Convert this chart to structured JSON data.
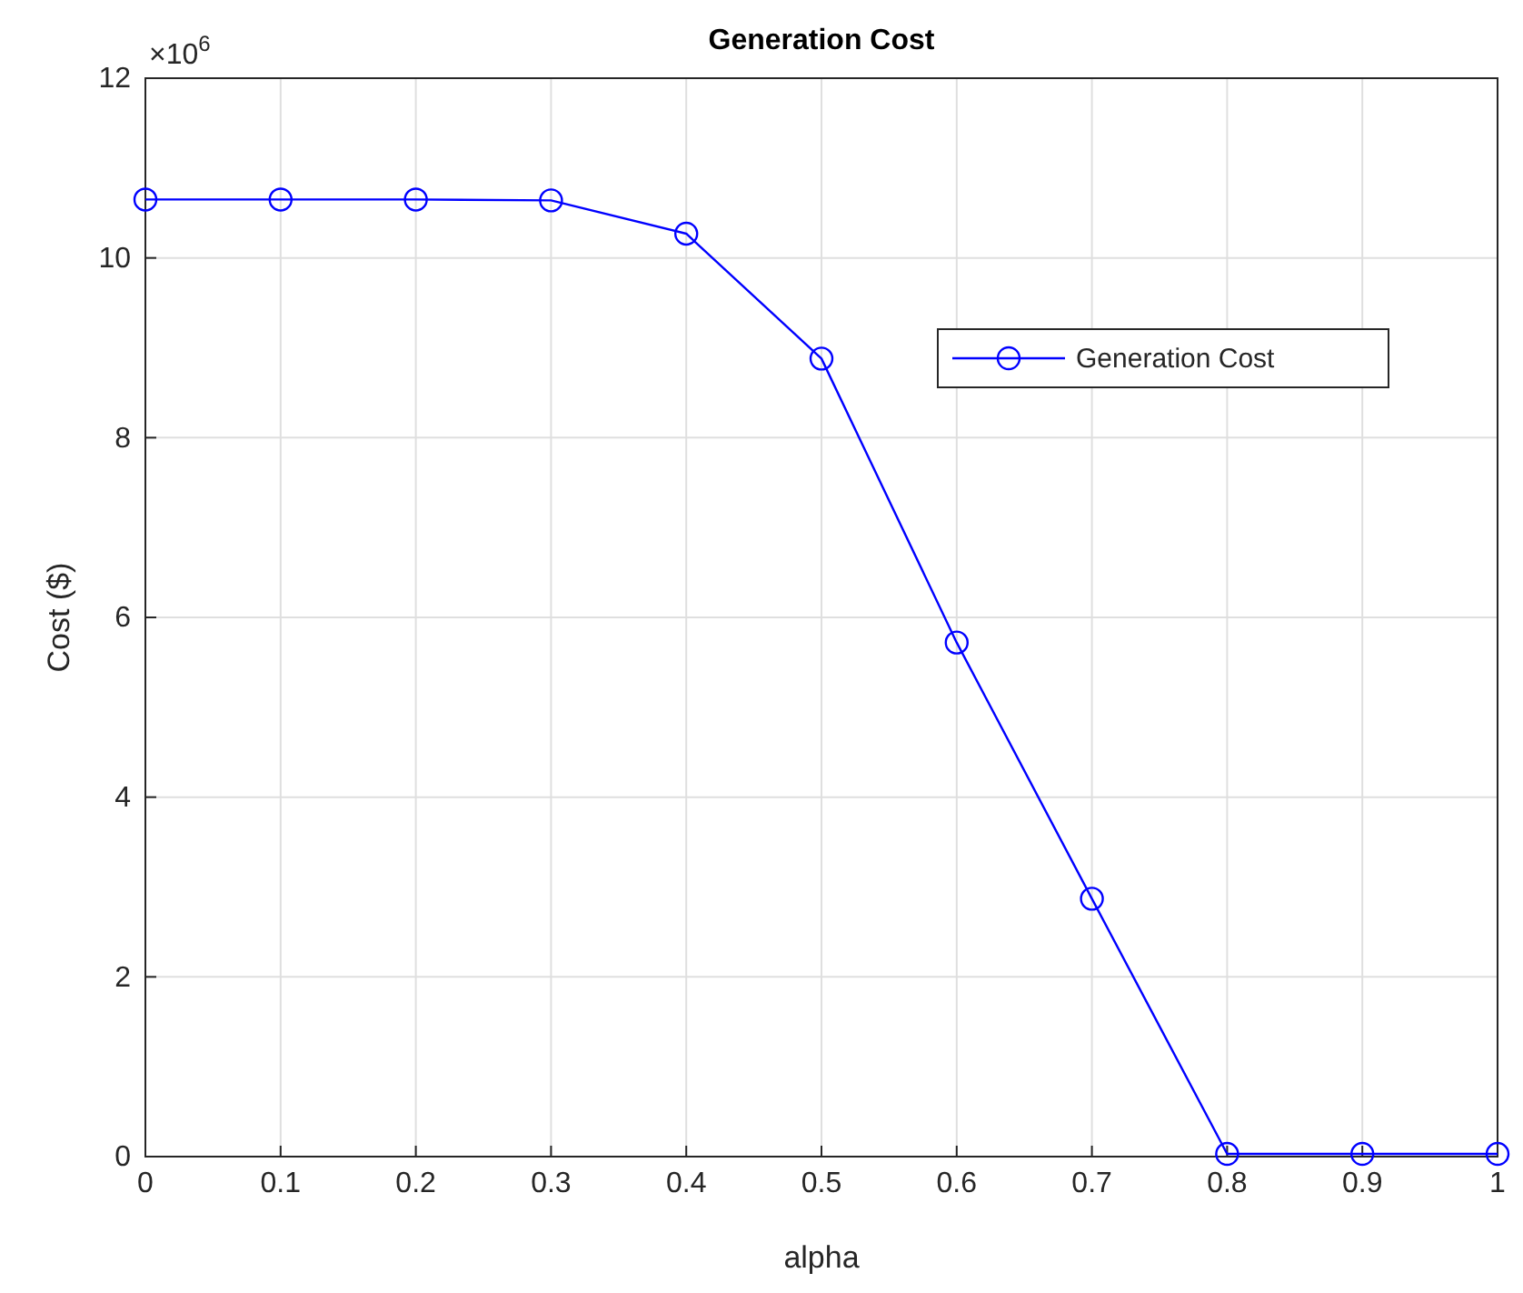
{
  "chart_data": {
    "type": "line",
    "title": "Generation Cost",
    "xlabel": "alpha",
    "ylabel": "Cost ($)",
    "x": [
      0,
      0.1,
      0.2,
      0.3,
      0.4,
      0.5,
      0.6,
      0.7,
      0.8,
      0.9,
      1
    ],
    "series": [
      {
        "name": "Generation Cost",
        "color": "#0000ff",
        "values": [
          10.65,
          10.65,
          10.65,
          10.64,
          10.27,
          8.88,
          5.72,
          2.87,
          0.03,
          0.03,
          0.03
        ]
      }
    ],
    "xlim": [
      0,
      1
    ],
    "xticks": [
      0,
      0.1,
      0.2,
      0.3,
      0.4,
      0.5,
      0.6,
      0.7,
      0.8,
      0.9,
      1
    ],
    "ylim": [
      0,
      12
    ],
    "yticks": [
      0,
      2,
      4,
      6,
      8,
      10,
      12
    ],
    "annotations": [
      "×10$^{6}$"
    ],
    "grid": true,
    "legend": "top right",
    "marker": "circle",
    "line_style": "solid"
  }
}
